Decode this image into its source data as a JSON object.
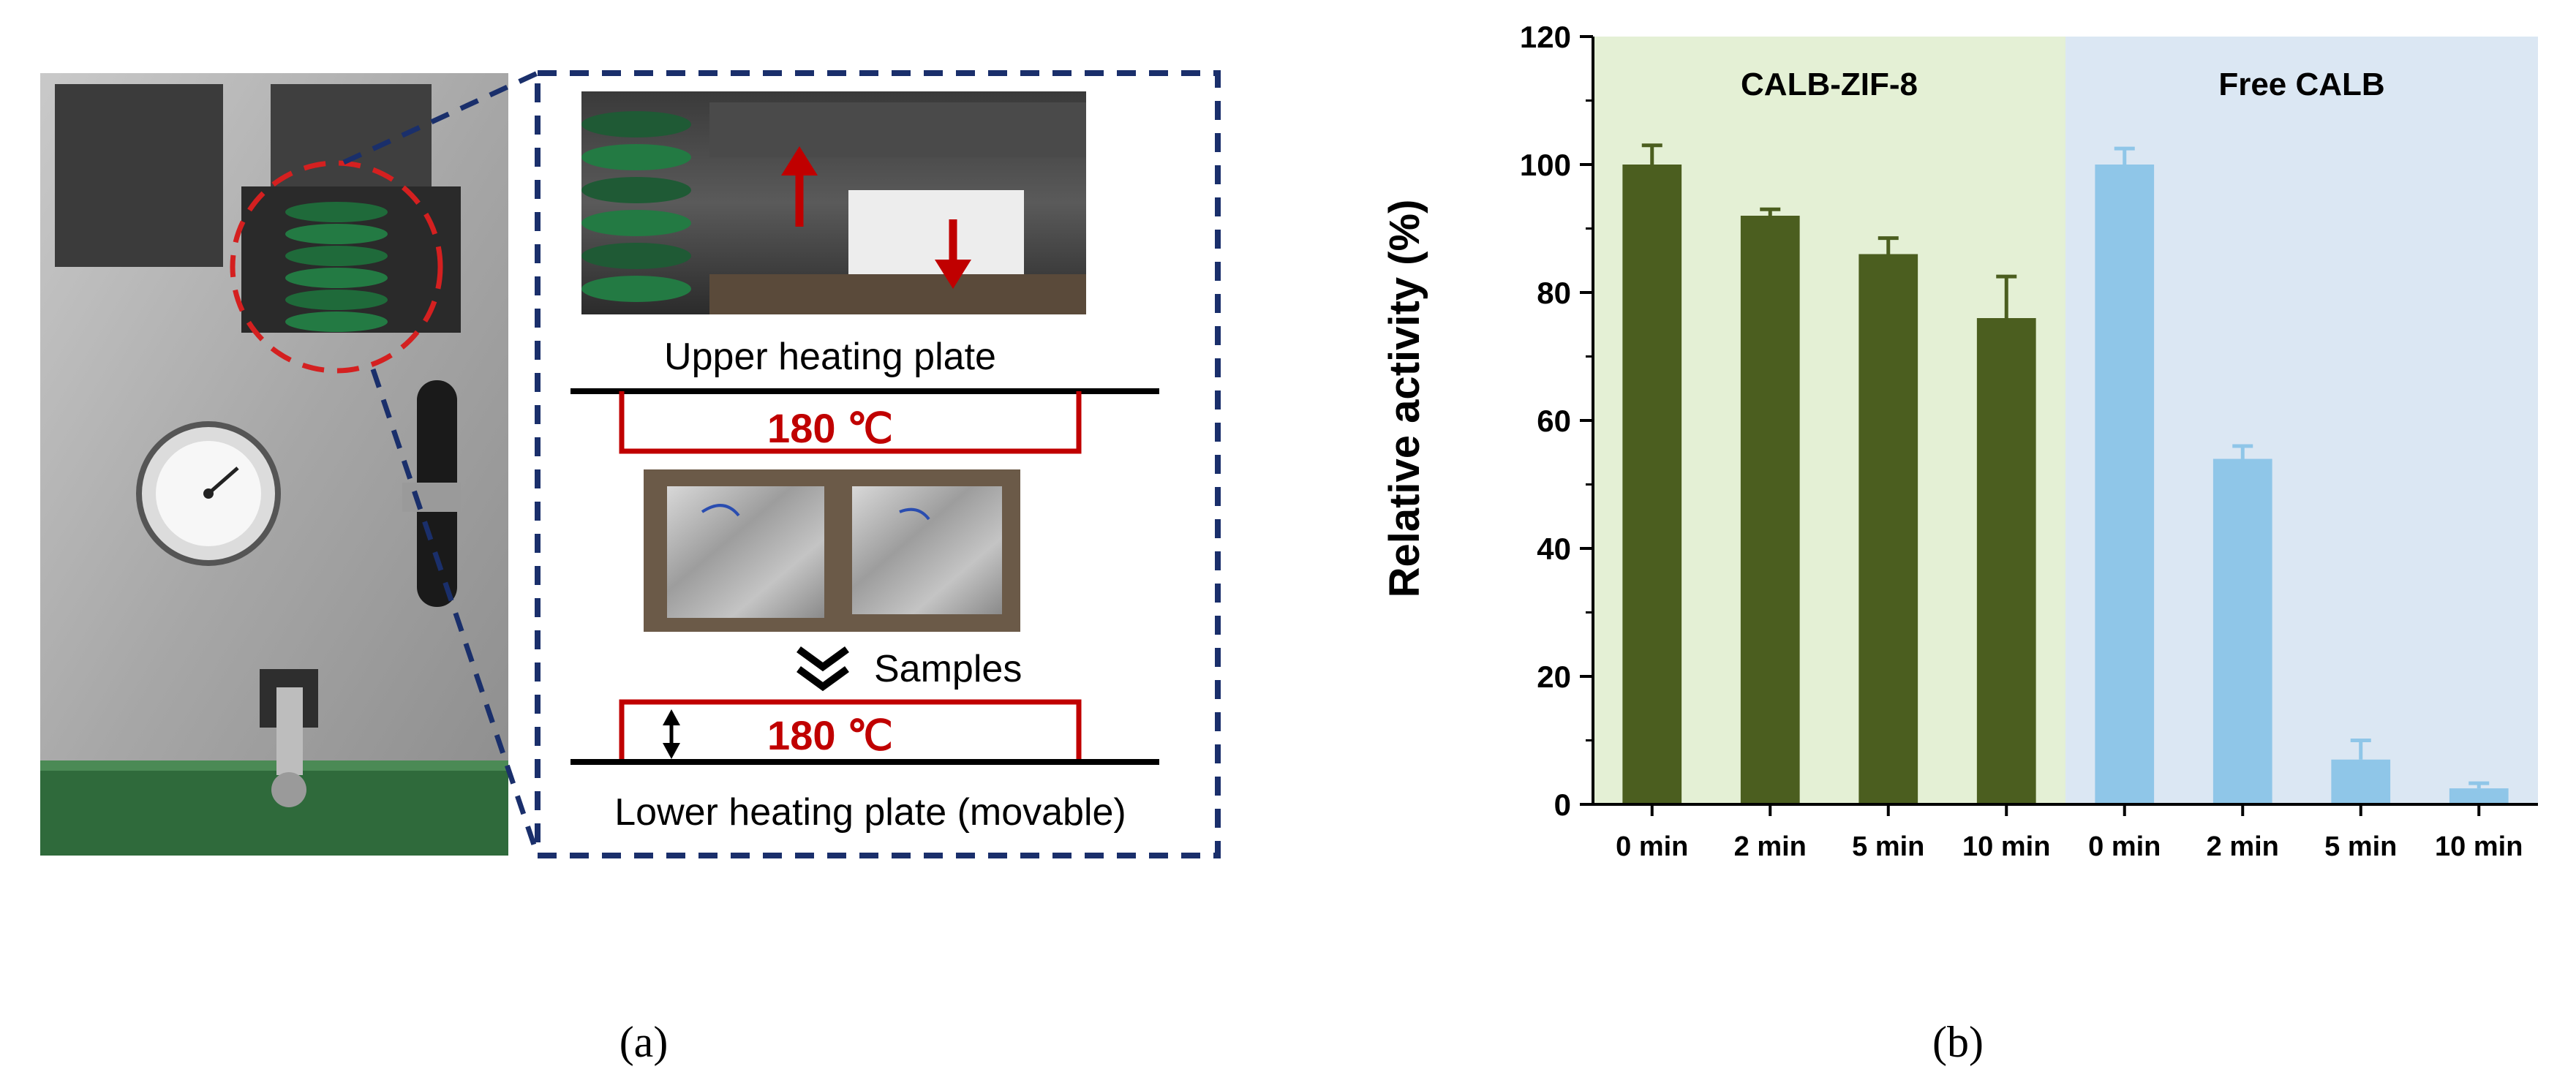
{
  "panel_a": {
    "label": "(a)",
    "upper_plate_label": "Upper heating plate",
    "upper_temp": "180 ℃",
    "samples_label": "Samples",
    "lower_temp": "180 ℃",
    "lower_plate_label": "Lower heating plate (movable)"
  },
  "panel_b": {
    "label": "(b)"
  },
  "colors": {
    "green_bar": "#4b5e1f",
    "blue_bar": "#8fc6e8",
    "green_bg": "#e4f0d5",
    "blue_bg": "#dbe7f3",
    "frame_blue": "#1a2f6b",
    "heater_red": "#c00000",
    "circle_red": "#d42020"
  },
  "chart_data": {
    "type": "bar",
    "ylabel": "Relative activity (%)",
    "xlabel": "",
    "ylim": [
      0,
      120
    ],
    "yticks": [
      0,
      20,
      40,
      60,
      80,
      100,
      120
    ],
    "grid": false,
    "groups": [
      {
        "name": "CALB-ZIF-8",
        "categories": [
          "0 min",
          "2 min",
          "5 min",
          "10 min"
        ],
        "values": [
          100,
          92,
          86,
          76
        ],
        "errors": [
          3,
          1,
          2.5,
          6.5
        ],
        "color": "#4b5e1f",
        "background": "#e4f0d5"
      },
      {
        "name": "Free CALB",
        "categories": [
          "0 min",
          "2 min",
          "5 min",
          "10 min"
        ],
        "values": [
          100,
          54,
          7,
          2.5
        ],
        "errors": [
          2.5,
          2,
          3,
          0.8
        ],
        "color": "#8fc6e8",
        "background": "#dbe7f3"
      }
    ]
  }
}
